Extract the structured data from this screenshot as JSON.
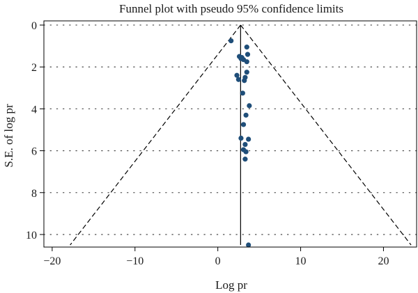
{
  "chart_data": {
    "type": "scatter",
    "title": "Funnel plot with pseudo 95% confidence limits",
    "xlabel": "Log pr",
    "ylabel": "S.E. of log pr",
    "xlim": [
      -21,
      24
    ],
    "ylim": [
      10.6,
      -0.2
    ],
    "y_reversed": true,
    "xticks": [
      -20,
      -10,
      0,
      10,
      20
    ],
    "xtick_labels": [
      "−20",
      "−10",
      "0",
      "10",
      "20"
    ],
    "yticks": [
      0,
      2,
      4,
      6,
      8,
      10
    ],
    "ytick_labels": [
      "0",
      "2",
      "4",
      "6",
      "8",
      "10"
    ],
    "grid": "horizontal-dotted",
    "pooled_estimate": 2.75,
    "ci_multiplier": 1.96,
    "se_max": 10.5,
    "colors": {
      "points": "#1f4e79",
      "lines": "#000000",
      "grid": "#555555"
    },
    "points": [
      {
        "x": 1.6,
        "y": 0.75
      },
      {
        "x": 3.5,
        "y": 1.05
      },
      {
        "x": 3.6,
        "y": 1.4
      },
      {
        "x": 2.6,
        "y": 1.5
      },
      {
        "x": 2.9,
        "y": 1.55
      },
      {
        "x": 2.8,
        "y": 1.6
      },
      {
        "x": 3.1,
        "y": 1.65
      },
      {
        "x": 3.5,
        "y": 1.75
      },
      {
        "x": 3.5,
        "y": 2.25
      },
      {
        "x": 2.3,
        "y": 2.4
      },
      {
        "x": 3.3,
        "y": 2.5
      },
      {
        "x": 2.5,
        "y": 2.6
      },
      {
        "x": 3.2,
        "y": 2.65
      },
      {
        "x": 3.0,
        "y": 3.25
      },
      {
        "x": 3.8,
        "y": 3.85
      },
      {
        "x": 3.4,
        "y": 4.3
      },
      {
        "x": 3.1,
        "y": 4.75
      },
      {
        "x": 2.8,
        "y": 5.4
      },
      {
        "x": 3.7,
        "y": 5.45
      },
      {
        "x": 3.3,
        "y": 5.7
      },
      {
        "x": 3.1,
        "y": 5.95
      },
      {
        "x": 3.4,
        "y": 6.05
      },
      {
        "x": 3.3,
        "y": 6.4
      },
      {
        "x": 3.7,
        "y": 10.5
      }
    ]
  }
}
